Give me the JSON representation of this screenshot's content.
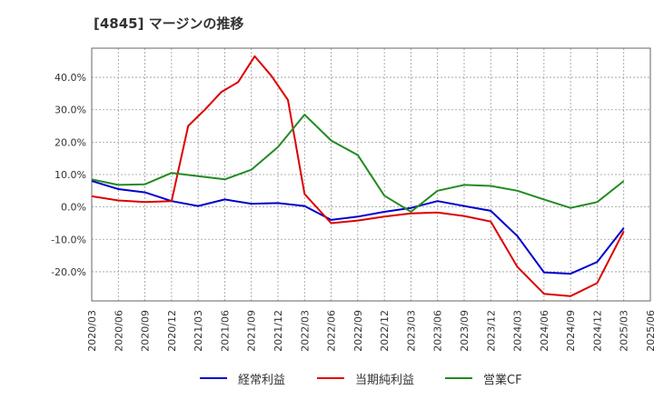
{
  "title": "[4845]  マージンの推移",
  "chart_data": {
    "type": "line",
    "x": [
      "2020/03",
      "2020/06",
      "2020/09",
      "2020/12",
      "2021/03",
      "2021/06",
      "2021/09",
      "2021/12",
      "2022/03",
      "2022/06",
      "2022/09",
      "2022/12",
      "2023/03",
      "2023/06",
      "2023/09",
      "2023/12",
      "2024/03",
      "2024/06",
      "2024/09",
      "2024/12",
      "2025/03",
      "2025/06"
    ],
    "ylim": [
      -29,
      49
    ],
    "yticks": [
      -20,
      -10,
      0,
      10,
      20,
      30,
      40
    ],
    "ytick_labels": [
      "-20.0%",
      "-10.0%",
      "0.0%",
      "10.0%",
      "20.0%",
      "30.0%",
      "40.0%"
    ],
    "grid": true,
    "legend_position": "bottom",
    "series": [
      {
        "name": "経常利益",
        "color": "#0000cc",
        "points": [
          [
            "2020/03",
            8.0
          ],
          [
            "2020/06",
            5.5
          ],
          [
            "2020/09",
            4.5
          ],
          [
            "2020/12",
            1.8
          ],
          [
            "2021/03",
            0.3
          ],
          [
            "2021/06",
            2.3
          ],
          [
            "2021/09",
            1.0
          ],
          [
            "2021/12",
            1.2
          ],
          [
            "2022/03",
            0.3
          ],
          [
            "2022/06",
            -4.0
          ],
          [
            "2022/09",
            -3.0
          ],
          [
            "2022/12",
            -1.5
          ],
          [
            "2023/03",
            -0.3
          ],
          [
            "2023/06",
            1.8
          ],
          [
            "2023/09",
            0.3
          ],
          [
            "2023/12",
            -1.2
          ],
          [
            "2024/03",
            -9.0
          ],
          [
            "2024/06",
            -20.2
          ],
          [
            "2024/09",
            -20.6
          ],
          [
            "2024/12",
            -17.0
          ],
          [
            "2025/03",
            -6.5
          ]
        ]
      },
      {
        "name": "当期純利益",
        "color": "#dd0000",
        "points": [
          [
            "2020/03",
            3.3
          ],
          [
            "2020/06",
            2.0
          ],
          [
            "2020/09",
            1.5
          ],
          [
            "2020/12",
            1.8
          ],
          [
            "2021/03",
            25.0
          ],
          [
            "2021/06",
            30.0
          ],
          [
            "2021/09",
            35.5
          ],
          [
            "2021/12",
            38.5
          ],
          [
            "2021/09",
            46.5
          ],
          [
            "2021/12",
            40.5
          ],
          [
            "2021/12",
            33.0
          ],
          [
            "2022/03",
            4.0
          ],
          [
            "2022/06",
            -5.0
          ],
          [
            "2022/09",
            -4.2
          ],
          [
            "2022/12",
            -3.0
          ],
          [
            "2023/03",
            -2.0
          ],
          [
            "2023/06",
            -1.7
          ],
          [
            "2023/09",
            -2.8
          ],
          [
            "2023/12",
            -4.5
          ],
          [
            "2024/03",
            -18.5
          ],
          [
            "2024/06",
            -26.8
          ],
          [
            "2024/09",
            -27.5
          ],
          [
            "2024/12",
            -23.5
          ],
          [
            "2025/03",
            -7.5
          ]
        ]
      },
      {
        "name": "営業CF",
        "color": "#228b22",
        "points": [
          [
            "2020/03",
            8.5
          ],
          [
            "2020/06",
            6.8
          ],
          [
            "2020/09",
            7.0
          ],
          [
            "2020/12",
            10.5
          ],
          [
            "2021/03",
            9.5
          ],
          [
            "2021/06",
            8.5
          ],
          [
            "2021/09",
            11.5
          ],
          [
            "2021/12",
            18.5
          ],
          [
            "2022/03",
            28.5
          ],
          [
            "2022/06",
            20.5
          ],
          [
            "2022/09",
            16.0
          ],
          [
            "2022/12",
            3.5
          ],
          [
            "2023/03",
            -1.5
          ],
          [
            "2023/06",
            5.0
          ],
          [
            "2023/09",
            6.8
          ],
          [
            "2023/12",
            6.5
          ],
          [
            "2024/03",
            5.0
          ],
          [
            "2024/06",
            2.3
          ],
          [
            "2024/09",
            -0.3
          ],
          [
            "2024/12",
            1.5
          ],
          [
            "2025/03",
            8.0
          ]
        ]
      }
    ]
  }
}
